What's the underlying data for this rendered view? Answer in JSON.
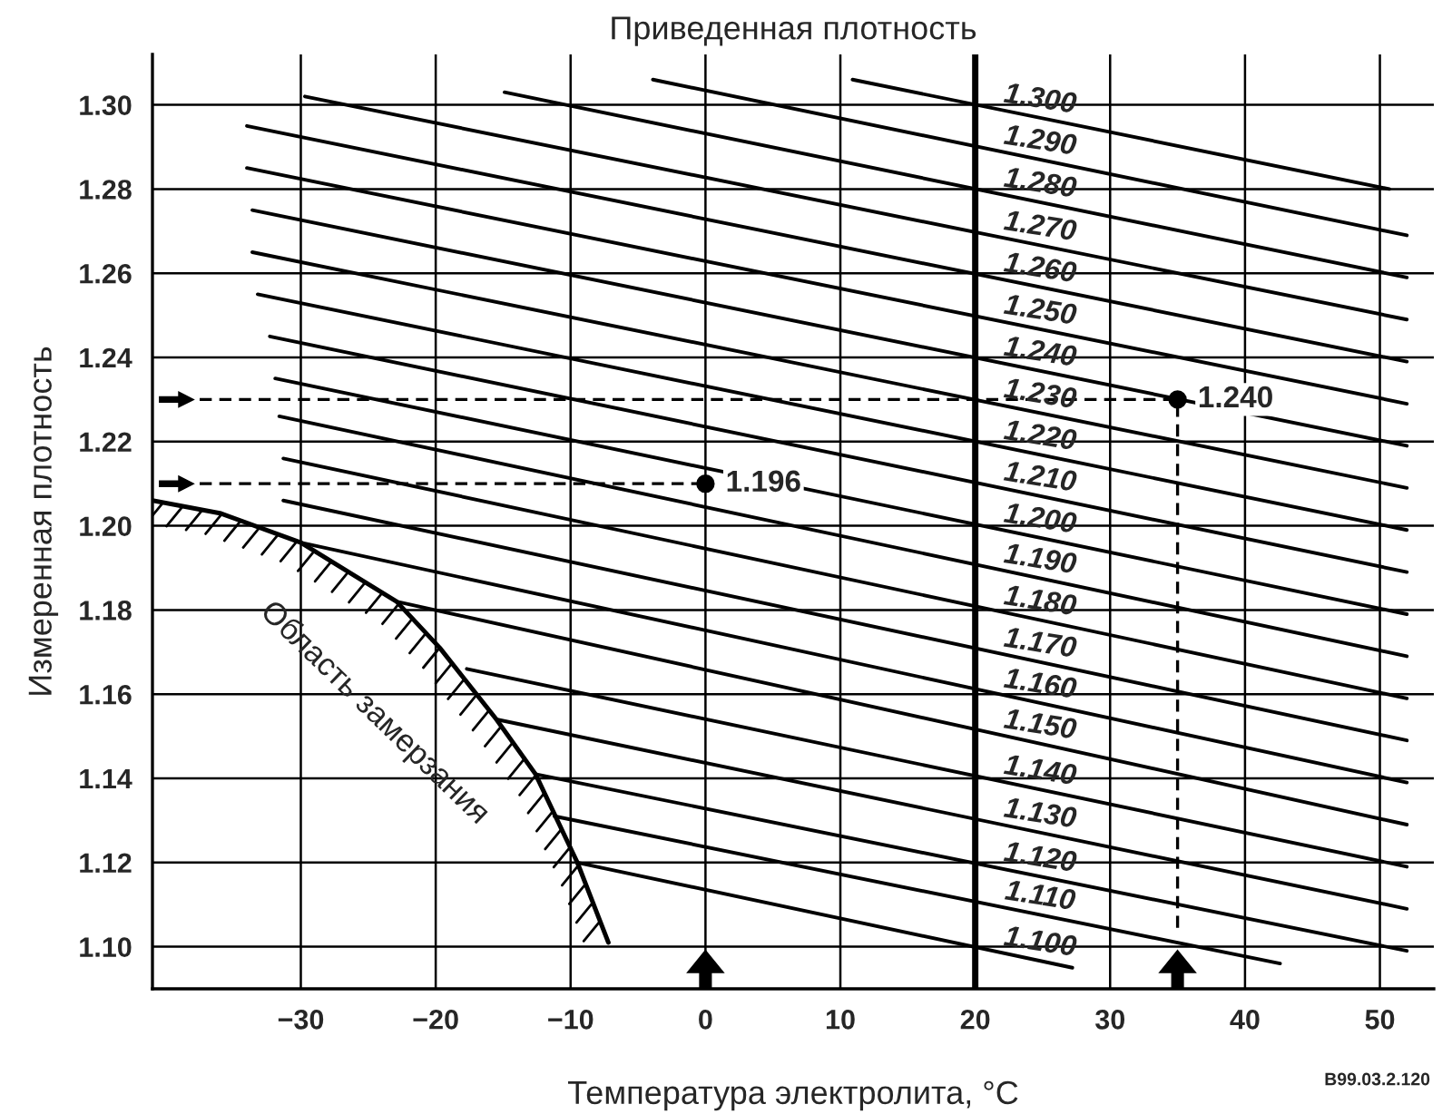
{
  "chart_data": {
    "type": "line",
    "title": "Приведенная плотность",
    "xlabel": "Температура электролита, °C",
    "ylabel": "Измеренная плотность",
    "xlim": [
      -41,
      54
    ],
    "ylim": [
      1.09,
      1.312
    ],
    "xticks": [
      {
        "value": -30,
        "label": "−30"
      },
      {
        "value": -20,
        "label": "−20"
      },
      {
        "value": -10,
        "label": "−10"
      },
      0,
      10,
      20,
      30,
      40,
      50
    ],
    "yticks": [
      {
        "value": 1.1,
        "label": "1.10"
      },
      {
        "value": 1.12,
        "label": "1.12"
      },
      {
        "value": 1.14,
        "label": "1.14"
      },
      {
        "value": 1.16,
        "label": "1.16"
      },
      {
        "value": 1.18,
        "label": "1.18"
      },
      {
        "value": 1.2,
        "label": "1.20"
      },
      {
        "value": 1.22,
        "label": "1.22"
      },
      {
        "value": 1.24,
        "label": "1.24"
      },
      {
        "value": 1.26,
        "label": "1.26"
      },
      {
        "value": 1.28,
        "label": "1.28"
      },
      {
        "value": 1.3,
        "label": "1.30"
      }
    ],
    "grid": true,
    "ref_lines": [
      {
        "axis": "x",
        "value": 20
      }
    ],
    "series": [
      {
        "name": "1.300",
        "color": "#000000",
        "x": [
          10.9,
          50.7
        ],
        "values": [
          1.306,
          1.28
        ]
      },
      {
        "name": "1.290",
        "color": "#000000",
        "x": [
          -3.9,
          52
        ],
        "values": [
          1.306,
          1.269
        ]
      },
      {
        "name": "1.280",
        "color": "#000000",
        "x": [
          -14.9,
          52
        ],
        "values": [
          1.303,
          1.259
        ]
      },
      {
        "name": "1.270",
        "color": "#000000",
        "x": [
          -29.7,
          52
        ],
        "values": [
          1.302,
          1.249
        ]
      },
      {
        "name": "1.260",
        "color": "#000000",
        "x": [
          -34.0,
          52
        ],
        "values": [
          1.295,
          1.239
        ]
      },
      {
        "name": "1.250",
        "color": "#000000",
        "x": [
          -34.0,
          52
        ],
        "values": [
          1.285,
          1.229
        ]
      },
      {
        "name": "1.240",
        "color": "#000000",
        "x": [
          -33.6,
          52
        ],
        "values": [
          1.275,
          1.219
        ]
      },
      {
        "name": "1.230",
        "color": "#000000",
        "x": [
          -33.6,
          52
        ],
        "values": [
          1.265,
          1.209
        ]
      },
      {
        "name": "1.220",
        "color": "#000000",
        "x": [
          -33.2,
          52
        ],
        "values": [
          1.255,
          1.199
        ]
      },
      {
        "name": "1.210",
        "color": "#000000",
        "x": [
          -32.3,
          52
        ],
        "values": [
          1.245,
          1.189
        ]
      },
      {
        "name": "1.200",
        "color": "#000000",
        "x": [
          -31.9,
          52
        ],
        "values": [
          1.235,
          1.179
        ]
      },
      {
        "name": "1.190",
        "color": "#000000",
        "x": [
          -31.6,
          52
        ],
        "values": [
          1.226,
          1.169
        ]
      },
      {
        "name": "1.180",
        "color": "#000000",
        "x": [
          -31.3,
          52
        ],
        "values": [
          1.216,
          1.159
        ]
      },
      {
        "name": "1.170",
        "color": "#000000",
        "x": [
          -31.3,
          52
        ],
        "values": [
          1.206,
          1.149
        ]
      },
      {
        "name": "1.160",
        "color": "#000000",
        "x": [
          -30.0,
          52
        ],
        "values": [
          1.196,
          1.139
        ]
      },
      {
        "name": "1.150",
        "color": "#000000",
        "x": [
          -22.9,
          52
        ],
        "values": [
          1.182,
          1.129
        ]
      },
      {
        "name": "1.140",
        "color": "#000000",
        "x": [
          -17.7,
          52
        ],
        "values": [
          1.166,
          1.119
        ]
      },
      {
        "name": "1.130",
        "color": "#000000",
        "x": [
          -15.5,
          52
        ],
        "values": [
          1.154,
          1.109
        ]
      },
      {
        "name": "1.120",
        "color": "#000000",
        "x": [
          -12.6,
          52
        ],
        "values": [
          1.141,
          1.099
        ]
      },
      {
        "name": "1.110",
        "color": "#000000",
        "x": [
          -11.2,
          42.6
        ],
        "values": [
          1.131,
          1.096
        ]
      },
      {
        "name": "1.100",
        "color": "#000000",
        "x": [
          -9.5,
          27.2
        ],
        "values": [
          1.12,
          1.095
        ]
      },
      {
        "type": "area",
        "name": "Область замерзания",
        "color": "#000000",
        "x": [
          -41,
          -36,
          -30,
          -22.9,
          -19.7,
          -15.5,
          -12.6,
          -9.5,
          -7.2
        ],
        "values": [
          1.206,
          1.203,
          1.196,
          1.182,
          1.171,
          1.154,
          1.141,
          1.12,
          1.101
        ]
      },
      {
        "color": "#000000",
        "line_style": "dashed",
        "x": [
          -37.5,
          35,
          35
        ],
        "values": [
          1.23,
          1.23,
          1.104
        ]
      },
      {
        "color": "#000000",
        "line_style": "dashed",
        "x": [
          -37.5,
          0
        ],
        "values": [
          1.21,
          1.21
        ]
      },
      {
        "type": "scatter",
        "color": "#000000",
        "marker": "circle",
        "x": [
          0,
          35
        ],
        "values": [
          1.21,
          1.23
        ]
      }
    ],
    "annotations": [
      {
        "text": "1.196",
        "x": 0,
        "y": 1.21
      },
      {
        "text": "1.240",
        "x": 35,
        "y": 1.23
      },
      "B99.03.2.120"
    ]
  }
}
